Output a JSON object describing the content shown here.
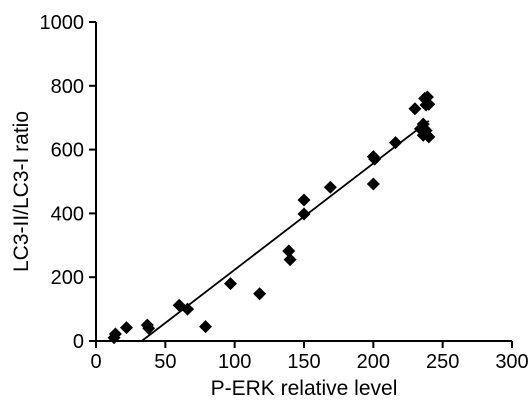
{
  "chart_data": {
    "type": "scatter",
    "title": "",
    "xlabel": "P-ERK relative level",
    "ylabel": "LC3-II/LC3-I ratio",
    "xlim": [
      0,
      300
    ],
    "ylim": [
      0,
      1000
    ],
    "xticks": [
      "0",
      "50",
      "100",
      "150",
      "200",
      "250",
      "300"
    ],
    "yticks": [
      "0",
      "200",
      "400",
      "600",
      "800",
      "1000"
    ],
    "marker": "diamond",
    "grid": false,
    "legend": "none",
    "series": [
      {
        "points": [
          [
            13,
            10
          ],
          [
            14,
            22
          ],
          [
            22,
            42
          ],
          [
            37,
            50
          ],
          [
            38,
            40
          ],
          [
            60,
            112
          ],
          [
            66,
            100
          ],
          [
            79,
            45
          ],
          [
            97,
            180
          ],
          [
            118,
            148
          ],
          [
            139,
            282
          ],
          [
            140,
            255
          ],
          [
            150,
            442
          ],
          [
            150,
            398
          ],
          [
            169,
            482
          ],
          [
            200,
            578
          ],
          [
            201,
            570
          ],
          [
            200,
            492
          ],
          [
            216,
            622
          ],
          [
            230,
            728
          ],
          [
            237,
            760
          ],
          [
            239,
            765
          ],
          [
            238,
            740
          ],
          [
            240,
            742
          ],
          [
            236,
            680
          ],
          [
            234,
            665
          ],
          [
            238,
            660
          ],
          [
            236,
            645
          ],
          [
            240,
            640
          ]
        ]
      }
    ],
    "trendline": {
      "x": [
        33,
        240
      ],
      "y": [
        0,
        690
      ]
    },
    "colors": {
      "marker": "#000000",
      "line": "#000000",
      "axis": "#000000"
    }
  }
}
